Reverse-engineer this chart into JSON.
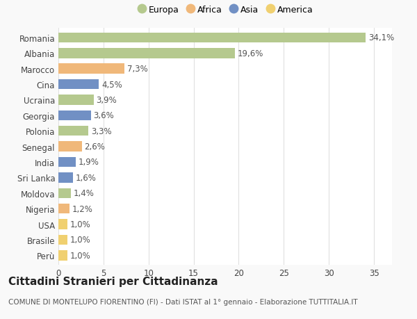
{
  "countries": [
    "Romania",
    "Albania",
    "Marocco",
    "Cina",
    "Ucraina",
    "Georgia",
    "Polonia",
    "Senegal",
    "India",
    "Sri Lanka",
    "Moldova",
    "Nigeria",
    "USA",
    "Brasile",
    "Perù"
  ],
  "values": [
    34.1,
    19.6,
    7.3,
    4.5,
    3.9,
    3.6,
    3.3,
    2.6,
    1.9,
    1.6,
    1.4,
    1.2,
    1.0,
    1.0,
    1.0
  ],
  "labels": [
    "34,1%",
    "19,6%",
    "7,3%",
    "4,5%",
    "3,9%",
    "3,6%",
    "3,3%",
    "2,6%",
    "1,9%",
    "1,6%",
    "1,4%",
    "1,2%",
    "1,0%",
    "1,0%",
    "1,0%"
  ],
  "continent": [
    "Europa",
    "Europa",
    "Africa",
    "Asia",
    "Europa",
    "Asia",
    "Europa",
    "Africa",
    "Asia",
    "Asia",
    "Europa",
    "Africa",
    "America",
    "America",
    "America"
  ],
  "colors": {
    "Europa": "#b5c98e",
    "Africa": "#f0b87a",
    "Asia": "#7190c4",
    "America": "#f0d070"
  },
  "title": "Cittadini Stranieri per Cittadinanza",
  "subtitle": "COMUNE DI MONTELUPO FIORENTINO (FI) - Dati ISTAT al 1° gennaio - Elaborazione TUTTITALIA.IT",
  "xlim": [
    0,
    37
  ],
  "xticks": [
    0,
    5,
    10,
    15,
    20,
    25,
    30,
    35
  ],
  "background_color": "#f9f9f9",
  "plot_bg_color": "#ffffff",
  "grid_color": "#e0e0e0",
  "bar_height": 0.65,
  "label_fontsize": 8.5,
  "title_fontsize": 11,
  "subtitle_fontsize": 7.5,
  "tick_fontsize": 8.5,
  "legend_fontsize": 9
}
